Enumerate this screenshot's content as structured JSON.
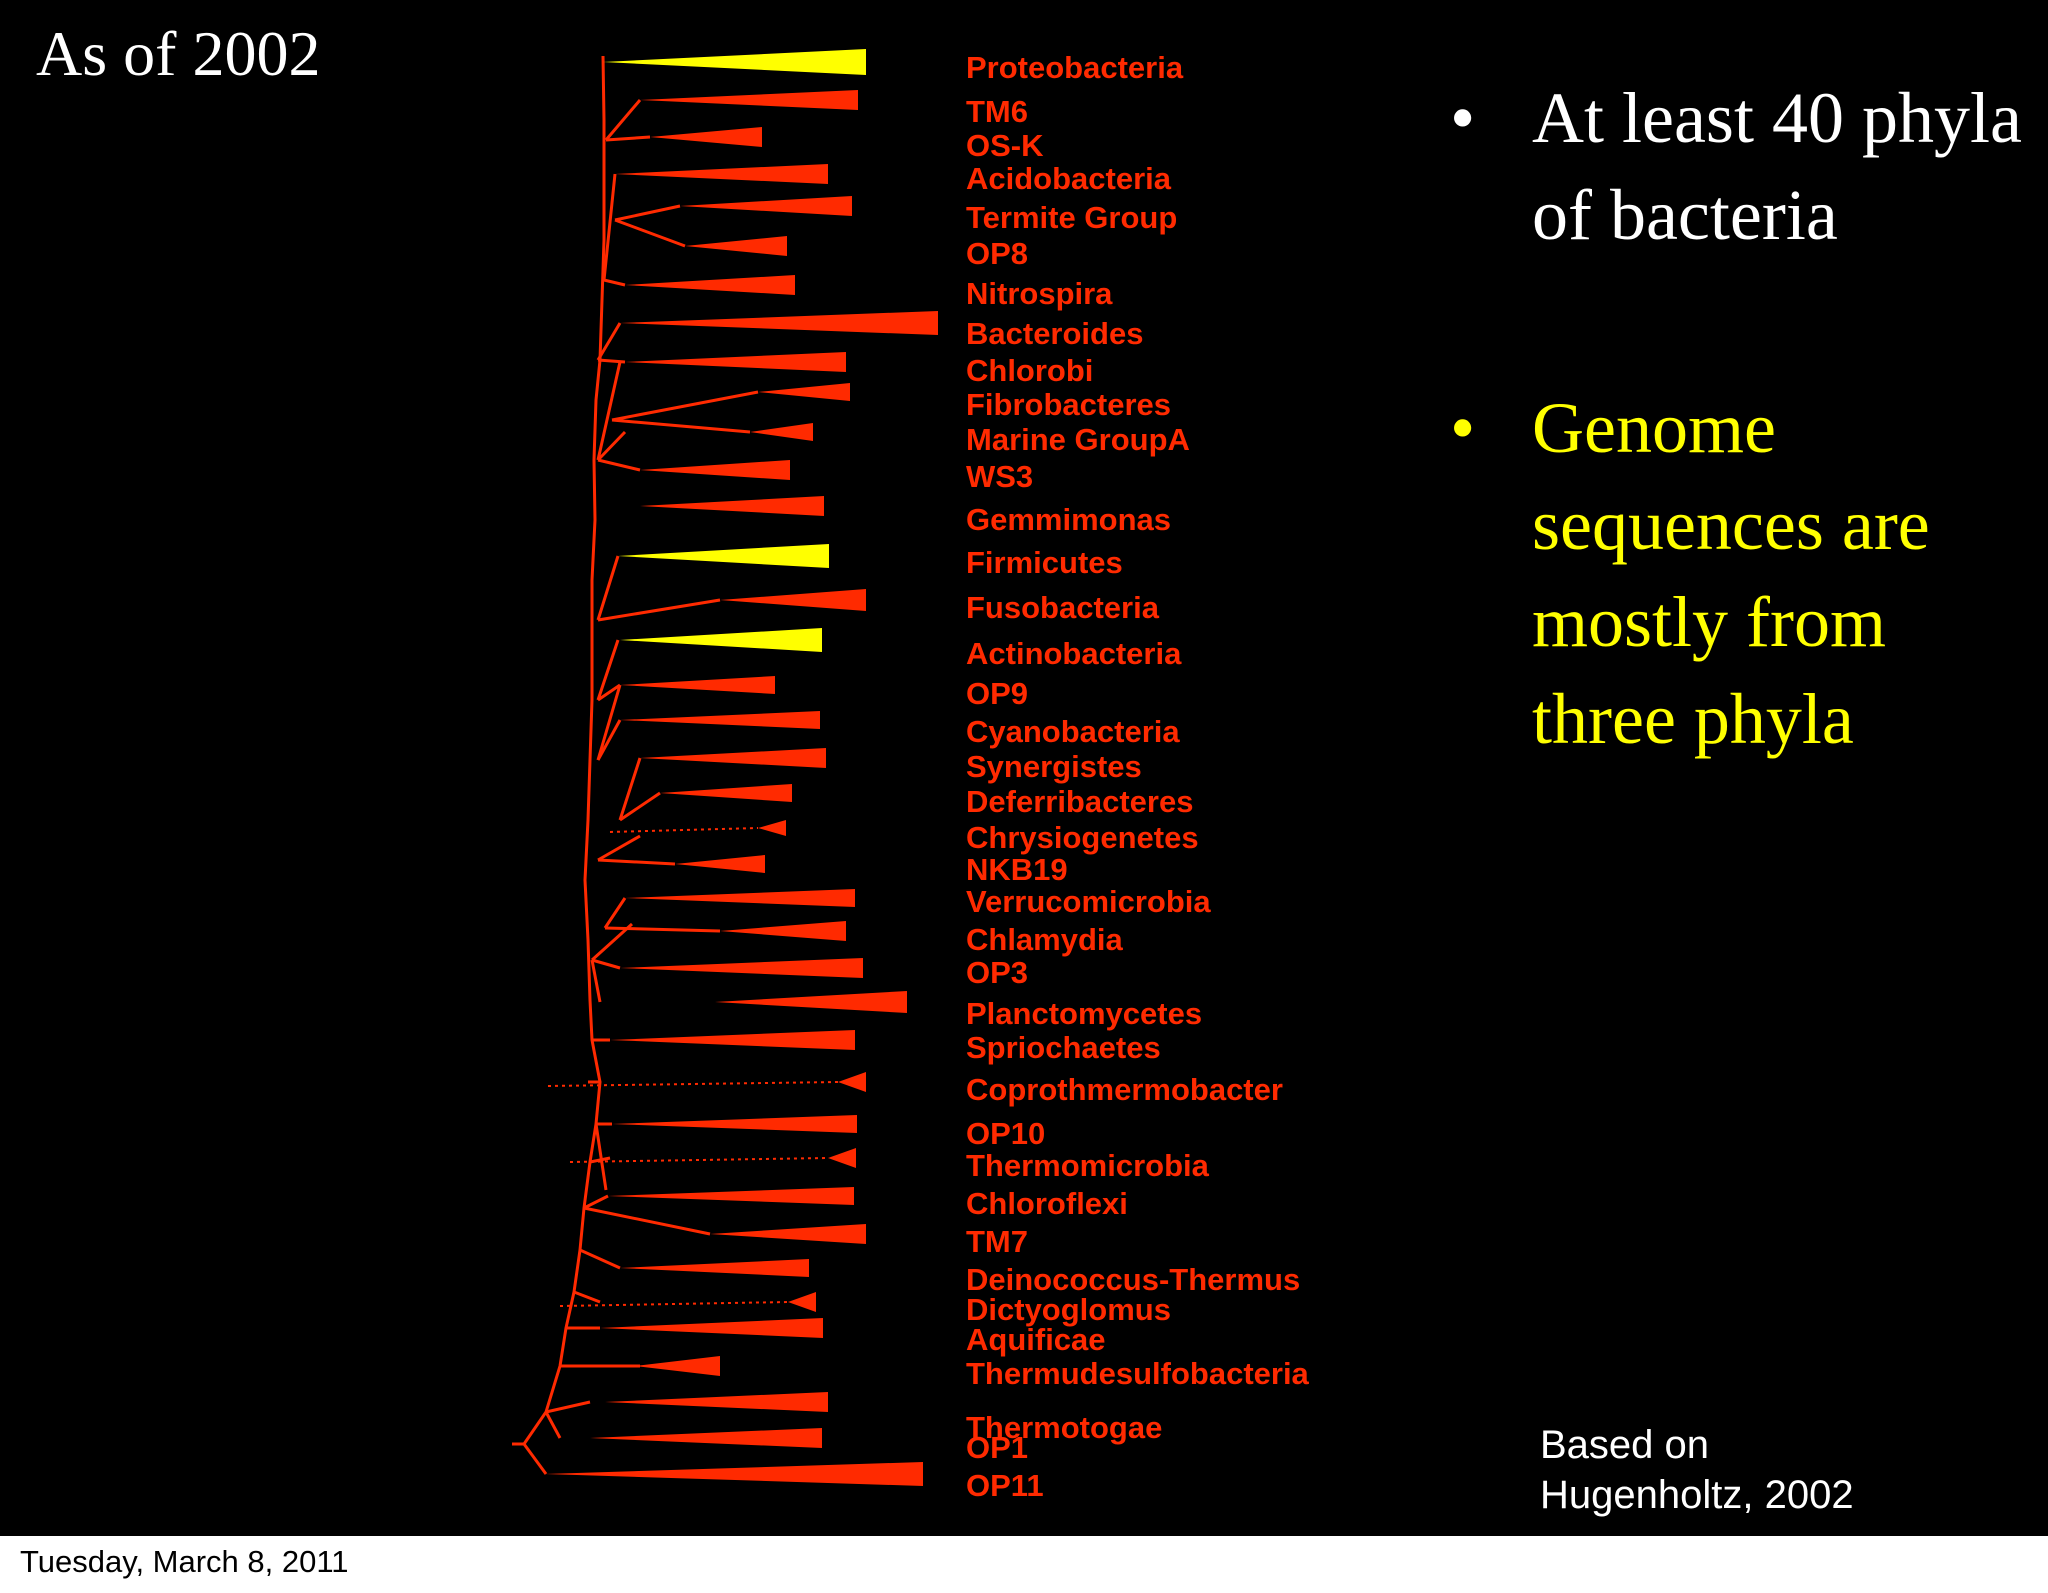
{
  "slide": {
    "title": "As of 2002",
    "bullets": [
      {
        "marker": "•",
        "text": "At least 40 phyla of bacteria",
        "color": "#ffffff"
      },
      {
        "marker": "•",
        "text": "Genome sequences are mostly from three phyla",
        "color": "#ffff00"
      }
    ],
    "attribution_line1": "Based on",
    "attribution_line2": "Hugenholtz, 2002"
  },
  "footer": {
    "date": "Tuesday, March 8, 2011"
  },
  "colors": {
    "background": "#000000",
    "tree": "#ff2a00",
    "highlight": "#ffff00",
    "text": "#ffffff"
  },
  "tree": {
    "highlighted_phyla": [
      "Proteobacteria",
      "Firmicutes",
      "Actinobacteria"
    ],
    "phyla": [
      "Proteobacteria",
      "TM6",
      "OS-K",
      "Acidobacteria",
      "Termite Group",
      "OP8",
      "Nitrospira",
      "Bacteroides",
      "Chlorobi",
      "Fibrobacteres",
      "Marine GroupA",
      "WS3",
      "Gemmimonas",
      "Firmicutes",
      "Fusobacteria",
      "Actinobacteria",
      "OP9",
      "Cyanobacteria",
      "Synergistes",
      "Deferribacteres",
      "Chrysiogenetes",
      "NKB19",
      "Verrucomicrobia",
      "Chlamydia",
      "OP3",
      "Planctomycetes",
      "Spriochaetes",
      "Coprothmermobacter",
      "OP10",
      "Thermomicrobia",
      "Chloroflexi",
      "TM7",
      "Deinococcus-Thermus",
      "Dictyoglomus",
      "Aquificae",
      "Thermudesulfobacteria",
      "Thermotogae",
      "OP1",
      "OP11"
    ]
  }
}
